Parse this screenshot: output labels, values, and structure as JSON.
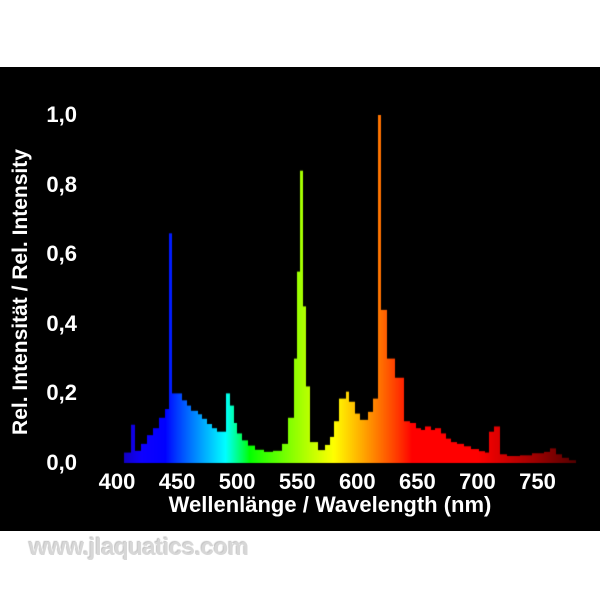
{
  "page": {
    "background": "#ffffff",
    "panel_background": "#000000",
    "text_color": "#ffffff",
    "watermark": "www.jlaquatics.com"
  },
  "chart_data": {
    "type": "area",
    "subtype": "emission-spectrum-histogram",
    "title": "",
    "xlabel": "Wellenlänge / Wavelength (nm)",
    "ylabel": "Rel. Intensität / Rel. Intensity",
    "xlim": [
      395,
      785
    ],
    "ylim": [
      0,
      1.05
    ],
    "grid": false,
    "axes_drawn": false,
    "legend": "none",
    "color_mapping": "visible-wavelength-rainbow",
    "x_tick_values": [
      400,
      450,
      500,
      550,
      600,
      650,
      700,
      750
    ],
    "x_tick_labels": [
      "400",
      "450",
      "500",
      "550",
      "600",
      "650",
      "700",
      "750"
    ],
    "y_tick_values": [
      1.0,
      0.8,
      0.6,
      0.4,
      0.2,
      0.0
    ],
    "y_tick_labels": [
      "1,0",
      "0,8",
      "0,6",
      "0,4",
      "0,2",
      "0,0"
    ],
    "peaks": [
      {
        "wavelength": 414,
        "intensity": 0.11
      },
      {
        "wavelength": 444,
        "intensity": 0.66
      },
      {
        "wavelength": 492,
        "intensity": 0.2
      },
      {
        "wavelength": 553,
        "intensity": 0.84
      },
      {
        "wavelength": 593,
        "intensity": 0.21
      },
      {
        "wavelength": 618,
        "intensity": 1.0
      },
      {
        "wavelength": 715,
        "intensity": 0.105
      }
    ],
    "bins": [
      [
        406,
        412,
        0.03
      ],
      [
        412,
        415,
        0.11
      ],
      [
        415,
        420,
        0.035
      ],
      [
        420,
        425,
        0.055
      ],
      [
        425,
        430,
        0.08
      ],
      [
        430,
        435,
        0.1
      ],
      [
        435,
        440,
        0.13
      ],
      [
        440,
        443,
        0.155
      ],
      [
        443,
        445.5,
        0.66
      ],
      [
        445.5,
        454,
        0.2
      ],
      [
        454,
        458,
        0.18
      ],
      [
        458,
        462,
        0.165
      ],
      [
        462,
        467,
        0.15
      ],
      [
        467,
        471,
        0.14
      ],
      [
        471,
        475,
        0.127
      ],
      [
        475,
        479,
        0.112
      ],
      [
        479,
        483,
        0.1
      ],
      [
        483,
        491,
        0.09
      ],
      [
        491,
        494,
        0.2
      ],
      [
        494,
        497,
        0.165
      ],
      [
        497,
        500,
        0.115
      ],
      [
        500,
        504,
        0.085
      ],
      [
        504,
        509,
        0.065
      ],
      [
        509,
        515,
        0.05
      ],
      [
        515,
        522,
        0.038
      ],
      [
        522,
        530,
        0.032
      ],
      [
        530,
        537,
        0.035
      ],
      [
        537,
        542,
        0.055
      ],
      [
        542,
        547,
        0.13
      ],
      [
        547,
        550,
        0.3
      ],
      [
        550,
        552,
        0.55
      ],
      [
        552,
        555,
        0.84
      ],
      [
        555,
        557,
        0.45
      ],
      [
        557,
        561,
        0.22
      ],
      [
        561,
        567,
        0.06
      ],
      [
        567,
        573,
        0.037
      ],
      [
        573,
        577,
        0.052
      ],
      [
        577,
        581,
        0.075
      ],
      [
        581,
        585,
        0.12
      ],
      [
        585,
        591,
        0.185
      ],
      [
        591,
        593,
        0.205
      ],
      [
        593,
        598,
        0.176
      ],
      [
        598,
        602,
        0.142
      ],
      [
        602,
        609,
        0.124
      ],
      [
        609,
        613,
        0.147
      ],
      [
        613,
        617,
        0.185
      ],
      [
        617,
        619.5,
        1.0
      ],
      [
        619.5,
        624.5,
        0.44
      ],
      [
        624.5,
        631,
        0.3
      ],
      [
        631,
        639,
        0.245
      ],
      [
        639,
        644,
        0.12
      ],
      [
        644,
        649,
        0.115
      ],
      [
        649,
        653,
        0.1
      ],
      [
        653,
        656,
        0.095
      ],
      [
        656,
        661,
        0.105
      ],
      [
        661,
        665,
        0.095
      ],
      [
        665,
        670,
        0.1
      ],
      [
        670,
        674,
        0.085
      ],
      [
        674,
        678,
        0.07
      ],
      [
        678,
        683,
        0.06
      ],
      [
        683,
        689,
        0.055
      ],
      [
        689,
        695,
        0.048
      ],
      [
        695,
        701,
        0.04
      ],
      [
        701,
        706,
        0.034
      ],
      [
        706,
        710,
        0.03
      ],
      [
        710,
        714,
        0.09
      ],
      [
        714,
        719,
        0.105
      ],
      [
        719,
        725,
        0.025
      ],
      [
        725,
        735,
        0.02
      ],
      [
        735,
        745,
        0.022
      ],
      [
        745,
        755,
        0.028
      ],
      [
        755,
        760,
        0.032
      ],
      [
        760,
        765,
        0.042
      ],
      [
        765,
        770,
        0.025
      ],
      [
        770,
        776,
        0.015
      ],
      [
        776,
        782,
        0.008
      ]
    ]
  }
}
